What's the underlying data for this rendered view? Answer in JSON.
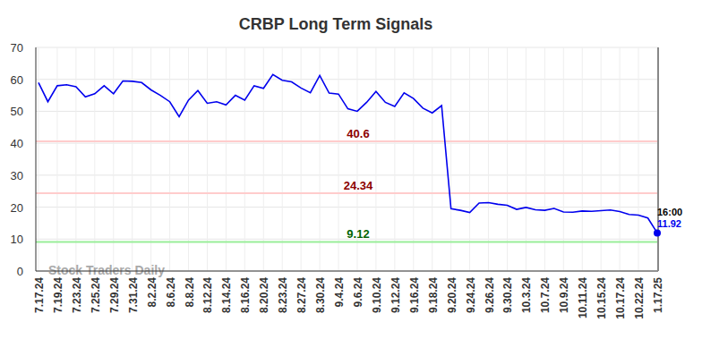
{
  "chart_data": {
    "type": "line",
    "title": "CRBP Long Term Signals",
    "categories": [
      "7.17.24",
      null,
      "7.19.24",
      null,
      "7.23.24",
      null,
      "7.25.24",
      null,
      "7.29.24",
      null,
      "7.31.24",
      null,
      "8.2.24",
      null,
      "8.6.24",
      null,
      "8.8.24",
      null,
      "8.12.24",
      null,
      "8.14.24",
      null,
      "8.16.24",
      null,
      "8.20.24",
      null,
      "8.23.24",
      null,
      "8.27.24",
      null,
      "8.30.24",
      null,
      "9.4.24",
      null,
      "9.6.24",
      null,
      "9.10.24",
      null,
      "9.12.24",
      null,
      "9.16.24",
      null,
      "9.18.24",
      null,
      "9.20.24",
      null,
      "9.24.24",
      null,
      "9.26.24",
      null,
      "9.30.24",
      null,
      "10.3.24",
      null,
      "10.7.24",
      null,
      "10.9.24",
      null,
      "10.11.24",
      null,
      "10.15.24",
      null,
      "10.17.24",
      null,
      "10.22.24",
      null,
      "1.17.25"
    ],
    "values": [
      59,
      53,
      58,
      58.3,
      57.7,
      54.5,
      55.5,
      58,
      55.5,
      59.5,
      59.4,
      59,
      56.7,
      55,
      53,
      48.3,
      53.5,
      56.5,
      52.5,
      53,
      52,
      55,
      53.5,
      58,
      57.2,
      61.5,
      59.7,
      59.2,
      57.3,
      55.8,
      61.2,
      55.7,
      55.4,
      50.8,
      50,
      52.8,
      56.2,
      52.8,
      51.5,
      55.8,
      54,
      51,
      49.5,
      51.8,
      19.5,
      19,
      18.3,
      21.3,
      21.4,
      20.9,
      20.6,
      19.3,
      19.9,
      19.2,
      19,
      19.6,
      18.5,
      18.4,
      18.8,
      18.7,
      18.9,
      19.1,
      18.6,
      17.7,
      17.5,
      16.6,
      11.92
    ],
    "color": "#0000ee",
    "ylim": [
      0,
      70
    ],
    "yticks": [
      0,
      10,
      20,
      30,
      40,
      50,
      60,
      70
    ],
    "grid": true,
    "hlines": [
      {
        "value": 40.6,
        "color": "#ffcccc",
        "label_color": "#8b0000"
      },
      {
        "value": 24.34,
        "color": "#ffcccc",
        "label_color": "#8b0000"
      },
      {
        "value": 9.12,
        "color": "#99ee99",
        "label_color": "#006400"
      }
    ],
    "annotations": [
      {
        "text": "16:00",
        "color": "#000000"
      },
      {
        "text": "11.92",
        "color": "#0000ee"
      }
    ],
    "watermark": "Stock Traders Daily"
  }
}
